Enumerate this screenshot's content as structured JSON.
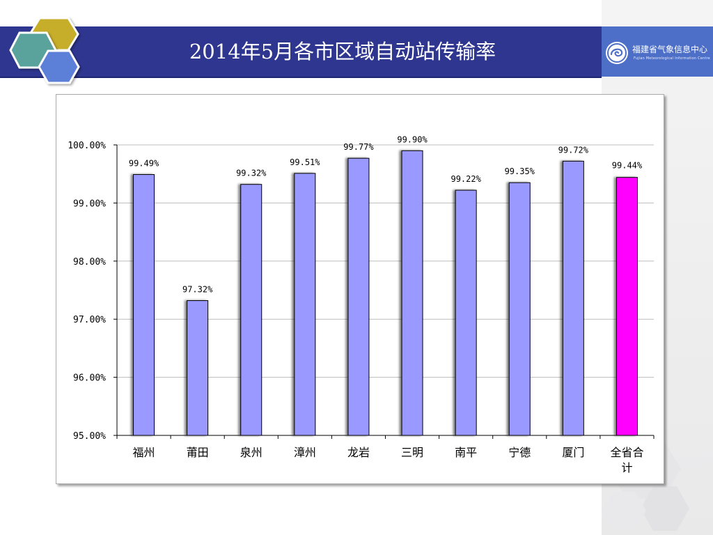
{
  "slide": {
    "title": "2014年5月各市区域自动站传输率"
  },
  "organization": {
    "name": "福建省气象信息中心",
    "name_en": "Fujian Meteorological Information Centre",
    "logo_icon": "meteorological-center-logo-icon"
  },
  "colors": {
    "title_bar": "#2e3690",
    "bar": "#9999ff",
    "highlight_bar": "#ff00ff",
    "highlight_label": "#ff00ff"
  },
  "chart_data": {
    "type": "bar",
    "title": "",
    "xlabel": "",
    "ylabel": "",
    "ylim": [
      95.0,
      100.0
    ],
    "y_ticks": [
      "95.00%",
      "96.00%",
      "97.00%",
      "98.00%",
      "99.00%",
      "100.00%"
    ],
    "y_tick_values": [
      95,
      96,
      97,
      98,
      99,
      100
    ],
    "grid": true,
    "legend": false,
    "categories": [
      "福州",
      "莆田",
      "泉州",
      "漳州",
      "龙岩",
      "三明",
      "南平",
      "宁德",
      "厦门",
      "全省合计"
    ],
    "category_lines": [
      [
        "福州"
      ],
      [
        "莆田"
      ],
      [
        "泉州"
      ],
      [
        "漳州"
      ],
      [
        "龙岩"
      ],
      [
        "三明"
      ],
      [
        "南平"
      ],
      [
        "宁德"
      ],
      [
        "厦门"
      ],
      [
        "全省合",
        "计"
      ]
    ],
    "values": [
      99.49,
      97.32,
      99.32,
      99.51,
      99.77,
      99.9,
      99.22,
      99.35,
      99.72,
      99.44
    ],
    "value_labels": [
      "99.49%",
      "97.32%",
      "99.32%",
      "99.51%",
      "99.77%",
      "99.90%",
      "99.22%",
      "99.35%",
      "99.72%",
      "99.44%"
    ],
    "highlight_index": 9
  }
}
